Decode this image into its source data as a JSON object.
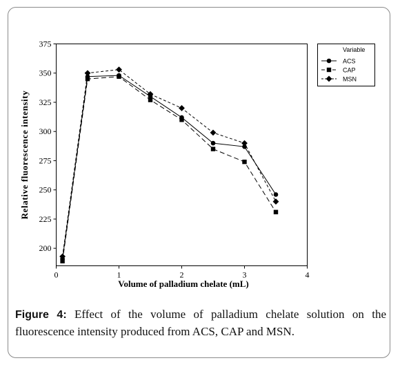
{
  "chart_data": {
    "type": "line",
    "xlabel": "Volume of palladium chelate (mL)",
    "ylabel": "Relative fluorescence intensity",
    "xlim": [
      0,
      4
    ],
    "ylim": [
      185,
      375
    ],
    "xticks": [
      0,
      1,
      2,
      3,
      4
    ],
    "yticks": [
      200,
      225,
      250,
      275,
      300,
      325,
      350,
      375
    ],
    "legend_title": "Variable",
    "legend_position": "top-right",
    "grid": false,
    "series": [
      {
        "name": "ACS",
        "marker": "circle",
        "dash": "solid",
        "x": [
          0.1,
          0.5,
          1.0,
          1.5,
          2.0,
          2.5,
          3.0,
          3.5
        ],
        "y": [
          191,
          347,
          348,
          330,
          312,
          290,
          287,
          246
        ]
      },
      {
        "name": "CAP",
        "marker": "square",
        "dash": "long-dash",
        "x": [
          0.1,
          0.5,
          1.0,
          1.5,
          2.0,
          2.5,
          3.0,
          3.5
        ],
        "y": [
          189,
          345,
          347,
          327,
          310,
          285,
          274,
          231
        ]
      },
      {
        "name": "MSN",
        "marker": "diamond",
        "dash": "short-dash",
        "x": [
          0.1,
          0.5,
          1.0,
          1.5,
          2.0,
          2.5,
          3.0,
          3.5
        ],
        "y": [
          193,
          350,
          353,
          332,
          320,
          299,
          290,
          240
        ]
      }
    ]
  },
  "caption": {
    "label": "Figure 4:",
    "text": " Effect of the volume of palladium chelate solution on the fluorescence intensity produced from ACS, CAP and MSN."
  }
}
